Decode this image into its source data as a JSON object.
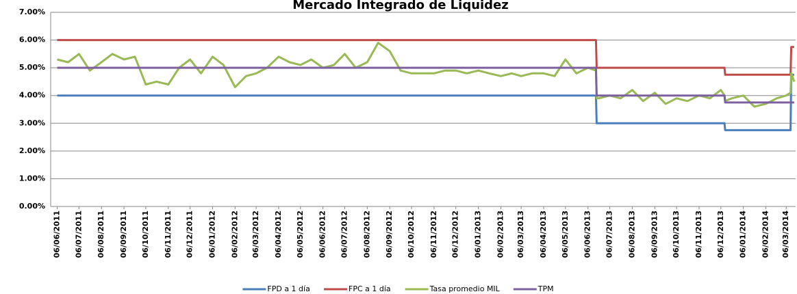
{
  "chart_data": {
    "type": "line",
    "title": "Mercado Integrado de Liquidez",
    "x": [
      "06/06/2011",
      "21/06/2011",
      "06/07/2011",
      "21/07/2011",
      "06/08/2011",
      "21/08/2011",
      "06/09/2011",
      "21/09/2011",
      "06/10/2011",
      "21/10/2011",
      "06/11/2011",
      "21/11/2011",
      "06/12/2011",
      "21/12/2011",
      "06/01/2012",
      "21/01/2012",
      "06/02/2012",
      "21/02/2012",
      "06/03/2012",
      "21/03/2012",
      "06/04/2012",
      "21/04/2012",
      "06/05/2012",
      "21/05/2012",
      "06/06/2012",
      "21/06/2012",
      "06/07/2012",
      "21/07/2012",
      "06/08/2012",
      "21/08/2012",
      "06/09/2012",
      "21/09/2012",
      "06/10/2012",
      "21/10/2012",
      "06/11/2012",
      "21/11/2012",
      "06/12/2012",
      "21/12/2012",
      "06/01/2013",
      "21/01/2013",
      "06/02/2013",
      "21/02/2013",
      "06/03/2013",
      "21/03/2013",
      "06/04/2013",
      "21/04/2013",
      "06/05/2013",
      "21/05/2013",
      "06/06/2013",
      "17/06/2013",
      "18/06/2013",
      "21/06/2013",
      "06/07/2013",
      "21/07/2013",
      "06/08/2013",
      "21/08/2013",
      "06/09/2013",
      "21/09/2013",
      "06/10/2013",
      "21/10/2013",
      "06/11/2013",
      "21/11/2013",
      "06/12/2013",
      "11/12/2013",
      "12/12/2013",
      "21/12/2013",
      "06/01/2014",
      "21/01/2014",
      "06/02/2014",
      "21/02/2014",
      "06/03/2014",
      "12/03/2014",
      "13/03/2014",
      "17/03/2014"
    ],
    "xlim": [
      "28/05/2011",
      "19/03/2014"
    ],
    "xticks": [
      "06/06/2011",
      "06/07/2011",
      "06/08/2011",
      "06/09/2011",
      "06/10/2011",
      "06/11/2011",
      "06/12/2011",
      "06/01/2012",
      "06/02/2012",
      "06/03/2012",
      "06/04/2012",
      "06/05/2012",
      "06/06/2012",
      "06/07/2012",
      "06/08/2012",
      "06/09/2012",
      "06/10/2012",
      "06/11/2012",
      "06/12/2012",
      "06/01/2013",
      "06/02/2013",
      "06/03/2013",
      "06/04/2013",
      "06/05/2013",
      "06/06/2013",
      "06/07/2013",
      "06/08/2013",
      "06/09/2013",
      "06/10/2013",
      "06/11/2013",
      "06/12/2013",
      "06/01/2014",
      "06/02/2014",
      "06/03/2014"
    ],
    "ylim": [
      0,
      7
    ],
    "yticks": [
      {
        "value": 0,
        "label": "0.00%"
      },
      {
        "value": 1,
        "label": "1.00%"
      },
      {
        "value": 2,
        "label": "2.00%"
      },
      {
        "value": 3,
        "label": "3.00%"
      },
      {
        "value": 4,
        "label": "4.00%"
      },
      {
        "value": 5,
        "label": "5.00%"
      },
      {
        "value": 6,
        "label": "6.00%"
      },
      {
        "value": 7,
        "label": "7.00%"
      }
    ],
    "grid": true,
    "legend": "bottom",
    "series": [
      {
        "name": "FPD a 1 día",
        "color": "#4a7ebb",
        "values": [
          4,
          4,
          4,
          4,
          4,
          4,
          4,
          4,
          4,
          4,
          4,
          4,
          4,
          4,
          4,
          4,
          4,
          4,
          4,
          4,
          4,
          4,
          4,
          4,
          4,
          4,
          4,
          4,
          4,
          4,
          4,
          4,
          4,
          4,
          4,
          4,
          4,
          4,
          4,
          4,
          4,
          4,
          4,
          4,
          4,
          4,
          4,
          4,
          4,
          4,
          3,
          3,
          3,
          3,
          3,
          3,
          3,
          3,
          3,
          3,
          3,
          3,
          3,
          3,
          2.75,
          2.75,
          2.75,
          2.75,
          2.75,
          2.75,
          2.75,
          2.75,
          4.75,
          4.75
        ]
      },
      {
        "name": "FPC a 1 día",
        "color": "#be4b48",
        "values": [
          6,
          6,
          6,
          6,
          6,
          6,
          6,
          6,
          6,
          6,
          6,
          6,
          6,
          6,
          6,
          6,
          6,
          6,
          6,
          6,
          6,
          6,
          6,
          6,
          6,
          6,
          6,
          6,
          6,
          6,
          6,
          6,
          6,
          6,
          6,
          6,
          6,
          6,
          6,
          6,
          6,
          6,
          6,
          6,
          6,
          6,
          6,
          6,
          6,
          6,
          5,
          5,
          5,
          5,
          5,
          5,
          5,
          5,
          5,
          5,
          5,
          5,
          5,
          5,
          4.75,
          4.75,
          4.75,
          4.75,
          4.75,
          4.75,
          4.75,
          4.75,
          5.75,
          5.75
        ]
      },
      {
        "name": "Tasa promedio MIL",
        "color": "#98b954",
        "values": [
          5.3,
          5.2,
          5.5,
          4.9,
          5.2,
          5.5,
          5.3,
          5.4,
          4.4,
          4.5,
          4.4,
          5.0,
          5.3,
          4.8,
          5.4,
          5.1,
          4.3,
          4.7,
          4.8,
          5.0,
          5.4,
          5.2,
          5.1,
          5.3,
          5.0,
          5.1,
          5.5,
          5.0,
          5.2,
          5.9,
          5.6,
          4.9,
          4.8,
          4.8,
          4.8,
          4.9,
          4.9,
          4.8,
          4.9,
          4.8,
          4.7,
          4.8,
          4.7,
          4.8,
          4.8,
          4.7,
          5.3,
          4.8,
          5.0,
          4.9,
          3.9,
          3.9,
          4.0,
          3.9,
          4.2,
          3.8,
          4.1,
          3.7,
          3.9,
          3.8,
          4.0,
          3.9,
          4.2,
          4.0,
          3.8,
          3.9,
          4.0,
          3.6,
          3.7,
          3.9,
          4.0,
          4.1,
          4.8,
          4.5
        ]
      },
      {
        "name": "TPM",
        "color": "#7d60a0",
        "values": [
          5,
          5,
          5,
          5,
          5,
          5,
          5,
          5,
          5,
          5,
          5,
          5,
          5,
          5,
          5,
          5,
          5,
          5,
          5,
          5,
          5,
          5,
          5,
          5,
          5,
          5,
          5,
          5,
          5,
          5,
          5,
          5,
          5,
          5,
          5,
          5,
          5,
          5,
          5,
          5,
          5,
          5,
          5,
          5,
          5,
          5,
          5,
          5,
          5,
          5,
          4,
          4,
          4,
          4,
          4,
          4,
          4,
          4,
          4,
          4,
          4,
          4,
          4,
          4,
          3.75,
          3.75,
          3.75,
          3.75,
          3.75,
          3.75,
          3.75,
          3.75,
          3.75,
          3.75
        ]
      }
    ]
  }
}
